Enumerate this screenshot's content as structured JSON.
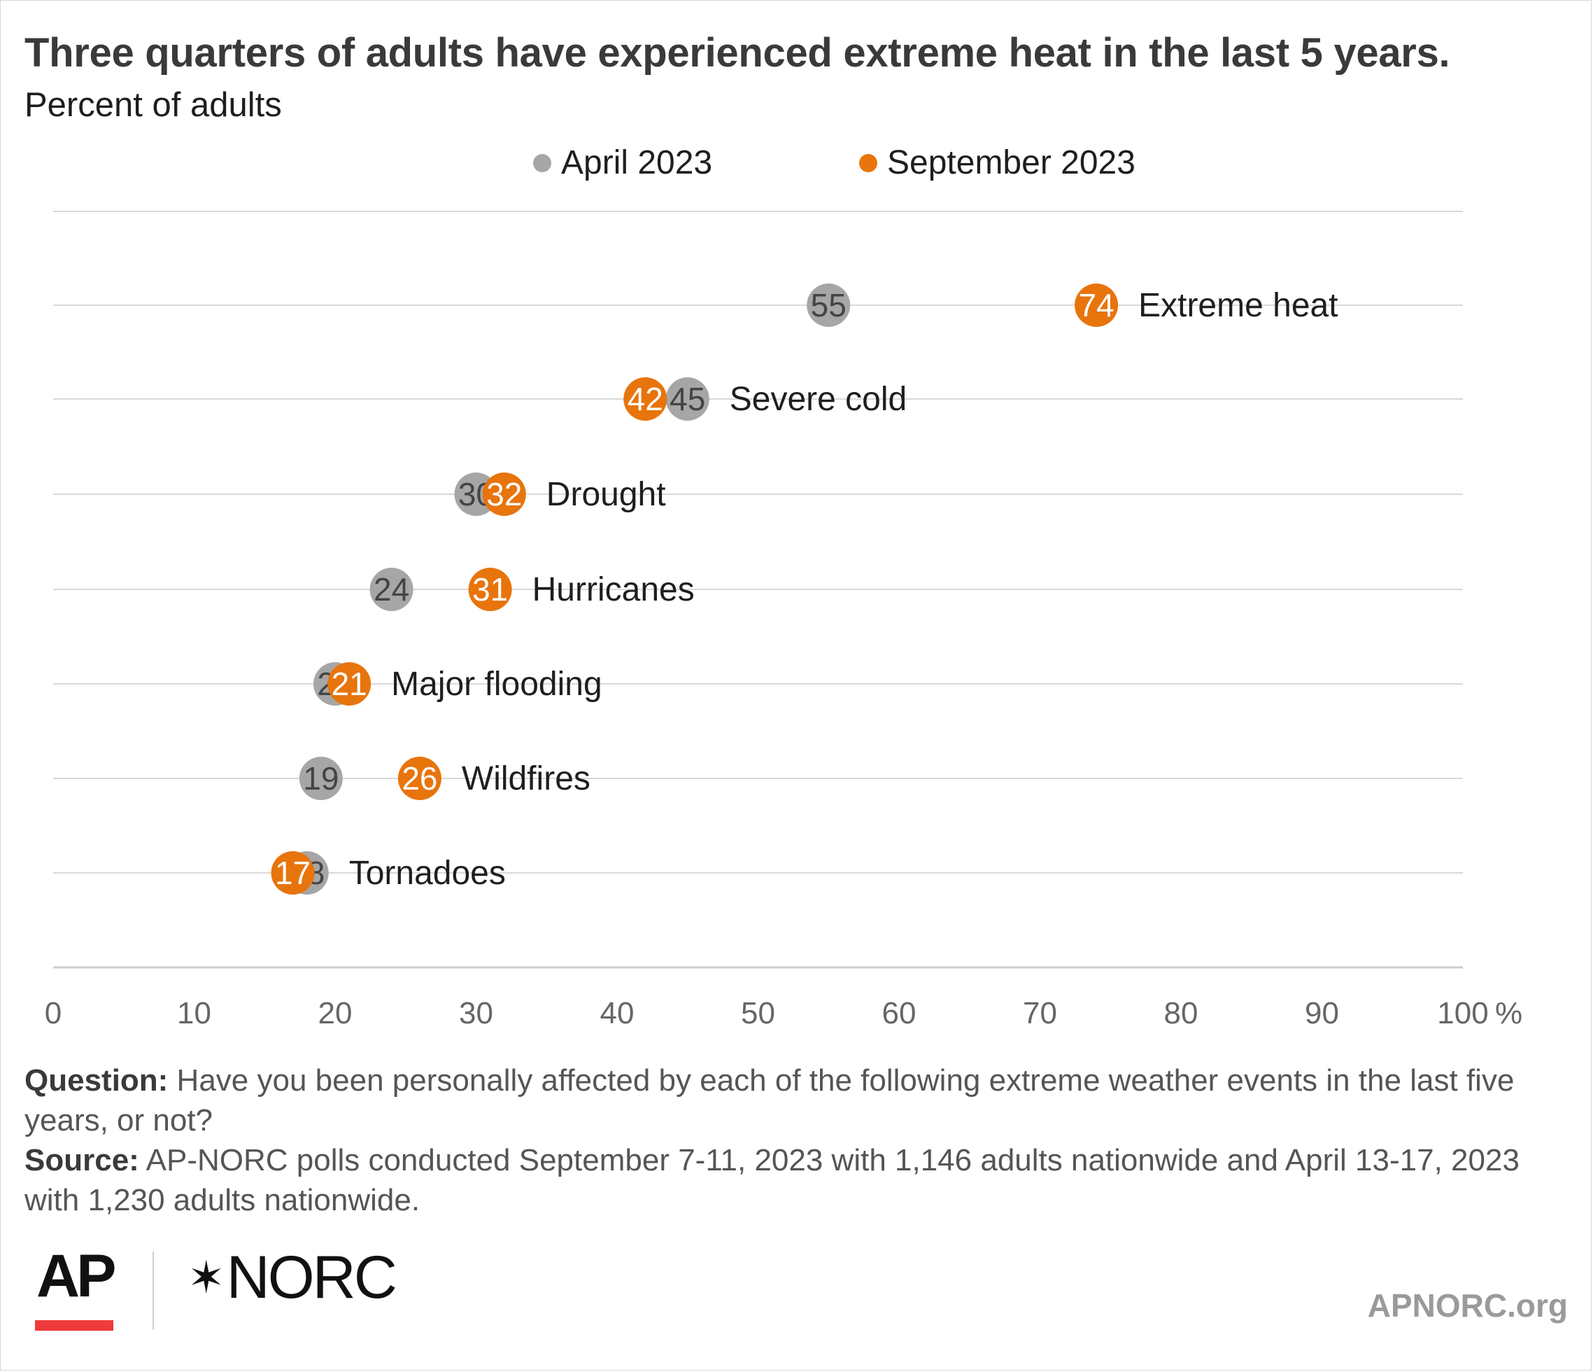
{
  "chart_data": {
    "type": "scatter",
    "title": "Three quarters of adults have experienced extreme heat in the last 5 years.",
    "subtitle": "Percent of adults",
    "categories": [
      "Extreme heat",
      "Severe cold",
      "Drought",
      "Hurricanes",
      "Major flooding",
      "Wildfires",
      "Tornadoes"
    ],
    "series": [
      {
        "name": "April 2023",
        "color": "#a6a6a6",
        "values": [
          55,
          45,
          30,
          24,
          20,
          19,
          18
        ]
      },
      {
        "name": "September 2023",
        "color": "#e8740c",
        "values": [
          74,
          42,
          32,
          31,
          21,
          26,
          17
        ]
      }
    ],
    "x_ticks": [
      "0",
      "10",
      "20",
      "30",
      "40",
      "50",
      "60",
      "70",
      "80",
      "90",
      "100"
    ],
    "x_unit": "%",
    "xlim": [
      0,
      100
    ],
    "grid": true,
    "legend": "top"
  },
  "footnote": {
    "question_label": "Question:",
    "question_text": " Have you been personally affected by each of the following extreme weather events in the last five years, or not?",
    "source_label": "Source:",
    "source_text": " AP-NORC polls conducted September 7-11, 2023 with 1,146 adults nationwide and April 13-17, 2023 with 1,230 adults nationwide."
  },
  "branding": {
    "ap_logo": "AP",
    "norc_star": "✶",
    "norc_logo": "NORC",
    "site": "APNORC.org"
  }
}
